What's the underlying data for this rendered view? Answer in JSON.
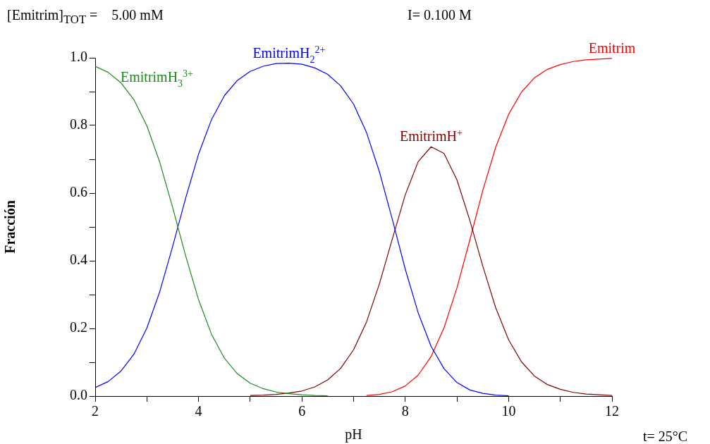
{
  "chart_data": {
    "type": "line",
    "xlabel": "pH",
    "ylabel": "Fracción",
    "annotations": [
      "[Emitrim]$_{TOT}$ =    5.00 mM",
      "I= 0.100 M",
      "t= 25°C"
    ],
    "x": [
      2,
      2.25,
      2.5,
      2.75,
      3,
      3.25,
      3.5,
      3.75,
      4,
      4.25,
      4.5,
      4.75,
      5,
      5.25,
      5.5,
      5.75,
      6,
      6.25,
      6.5,
      6.75,
      7,
      7.25,
      7.5,
      7.75,
      8,
      8.25,
      8.5,
      8.75,
      9,
      9.25,
      9.5,
      9.75,
      10,
      10.25,
      10.5,
      10.75,
      11,
      11.25,
      11.5,
      11.75,
      12
    ],
    "series": [
      {
        "name": "EmitrimH$_{3}$$^{3+}$",
        "color": "#1a8a1a",
        "values": [
          0.975,
          0.957,
          0.926,
          0.876,
          0.799,
          0.691,
          0.557,
          0.415,
          0.285,
          0.183,
          0.112,
          0.066,
          0.038,
          0.022,
          0.012,
          0.007,
          0.004,
          0.002,
          0.001,
          null,
          null,
          null,
          null,
          null,
          null,
          null,
          null,
          null,
          null,
          null,
          null,
          null,
          null,
          null,
          null,
          null,
          null,
          null,
          null,
          null,
          null
        ]
      },
      {
        "name": "EmitrimH$_{2}$$^{2+}$",
        "color": "#0000ff",
        "values": [
          0.025,
          0.043,
          0.074,
          0.124,
          0.201,
          0.309,
          0.443,
          0.585,
          0.715,
          0.817,
          0.888,
          0.933,
          0.96,
          0.975,
          0.983,
          0.984,
          0.981,
          0.97,
          0.951,
          0.917,
          0.863,
          0.779,
          0.663,
          0.522,
          0.375,
          0.246,
          0.147,
          0.081,
          0.04,
          0.018,
          0.008,
          0.003,
          0.001,
          null,
          null,
          null,
          null,
          null,
          null,
          null,
          null
        ]
      },
      {
        "name": "EmitrimH$^{+}$",
        "color": "#800000",
        "values": [
          null,
          null,
          null,
          null,
          null,
          null,
          null,
          null,
          null,
          null,
          null,
          null,
          0.002,
          0.003,
          0.005,
          0.009,
          0.015,
          0.027,
          0.048,
          0.082,
          0.137,
          0.219,
          0.332,
          0.465,
          0.595,
          0.693,
          0.737,
          0.717,
          0.639,
          0.519,
          0.384,
          0.261,
          0.166,
          0.101,
          0.059,
          0.034,
          0.02,
          0.011,
          0.006,
          0.004,
          0.002
        ]
      },
      {
        "name": "Emitrim",
        "color": "#ff0000",
        "values": [
          null,
          null,
          null,
          null,
          null,
          null,
          null,
          null,
          null,
          null,
          null,
          null,
          null,
          null,
          null,
          null,
          null,
          null,
          null,
          null,
          null,
          0.002,
          0.005,
          0.013,
          0.03,
          0.062,
          0.117,
          0.202,
          0.32,
          0.462,
          0.608,
          0.736,
          0.833,
          0.899,
          0.941,
          0.966,
          0.98,
          0.989,
          0.994,
          0.996,
          0.998
        ]
      }
    ],
    "xlim": [
      2,
      12
    ],
    "xticks": [
      2,
      {
        "value": 3,
        "label": null
      },
      4,
      {
        "value": 5,
        "label": null
      },
      6,
      {
        "value": 7,
        "label": null
      },
      8,
      {
        "value": 9,
        "label": null
      },
      10,
      {
        "value": 11,
        "label": null
      },
      12
    ],
    "ylim": [
      0,
      1
    ],
    "yticks": [
      {
        "value": 0,
        "label": "0.0"
      },
      {
        "value": 0.1,
        "label": null
      },
      {
        "value": 0.2,
        "label": "0.2"
      },
      {
        "value": 0.3,
        "label": null
      },
      {
        "value": 0.4,
        "label": "0.4"
      },
      {
        "value": 0.5,
        "label": null
      },
      {
        "value": 0.6,
        "label": "0.6"
      },
      {
        "value": 0.7,
        "label": null
      },
      {
        "value": 0.8,
        "label": "0.8"
      },
      {
        "value": 0.9,
        "label": null
      },
      {
        "value": 1,
        "label": "1.0"
      }
    ],
    "grid": false,
    "legend": false,
    "marker": "none",
    "line_style": "solid"
  }
}
